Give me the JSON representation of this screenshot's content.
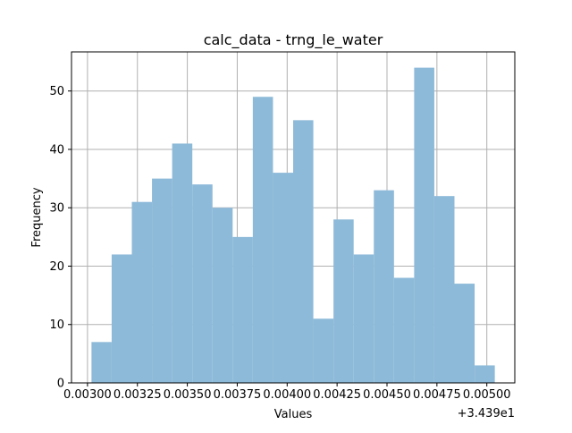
{
  "chart_data": {
    "type": "bar",
    "title": "calc_data - trng_le_water",
    "xlabel": "Values",
    "ylabel": "Frequency",
    "x_offset_label": "+3.439e1",
    "x_tick_labels": [
      "0.00300",
      "0.00325",
      "0.00350",
      "0.00375",
      "0.00400",
      "0.00425",
      "0.00450",
      "0.00475",
      "0.00500"
    ],
    "x_ticks": [
      0.003,
      0.00325,
      0.0035,
      0.00375,
      0.004,
      0.00425,
      0.0045,
      0.00475,
      0.005
    ],
    "y_ticks": [
      0,
      10,
      20,
      30,
      40,
      50
    ],
    "bin_edges": [
      0.00302,
      0.003121,
      0.003222,
      0.003323,
      0.003424,
      0.003525,
      0.003626,
      0.003727,
      0.003828,
      0.003929,
      0.00403,
      0.004131,
      0.004232,
      0.004333,
      0.004434,
      0.004535,
      0.004636,
      0.004737,
      0.004838,
      0.004939,
      0.00504
    ],
    "values": [
      7,
      22,
      31,
      35,
      41,
      34,
      30,
      25,
      49,
      36,
      45,
      11,
      28,
      22,
      33,
      18,
      54,
      32,
      17,
      3
    ],
    "xlim": [
      0.0029199,
      0.0051401
    ],
    "ylim": [
      0,
      56.7
    ],
    "bar_color": "#8ebad9",
    "grid": true,
    "legend": "none"
  }
}
